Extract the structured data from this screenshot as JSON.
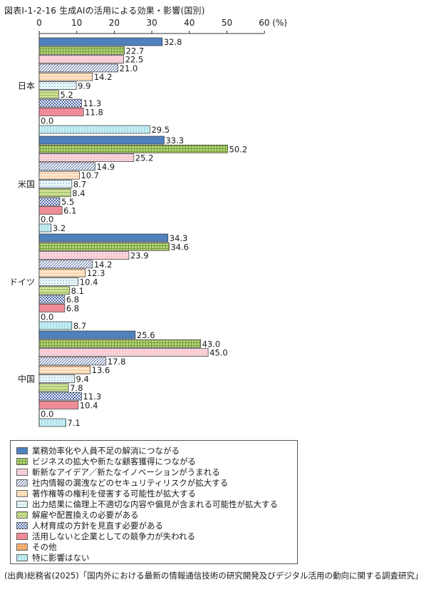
{
  "title": "図表Ⅰ-1-2-16 生成AIの活用による効果・影響(国別)",
  "source": "(出典)総務省(2025)「国内外における最新の情報通信技術の研究開発及びデジタル活用の動向に関する調査研究」",
  "chart_data": {
    "type": "bar",
    "orientation": "horizontal",
    "title": "図表Ⅰ-1-2-16 生成AIの活用による効果・影響(国別)",
    "xlim": [
      0,
      60
    ],
    "x_ticks": [
      "0",
      "10",
      "20",
      "30",
      "40",
      "50",
      "60 (%)"
    ],
    "x_tick_values": [
      0,
      10,
      20,
      30,
      40,
      50,
      60
    ],
    "categories": [
      "日本",
      "米国",
      "ドイツ",
      "中国"
    ],
    "legend_placement": "bottom-left",
    "series": [
      {
        "name": "業務効率化や人員不足の解消につながる",
        "color": "#4f81bd",
        "pattern": "solid",
        "values": [
          32.8,
          33.3,
          34.3,
          25.6
        ]
      },
      {
        "name": "ビジネスの拡大や新たな顧客獲得につながる",
        "color": "#b3d67a",
        "pattern": "grid",
        "values": [
          22.7,
          50.2,
          34.6,
          43.0
        ]
      },
      {
        "name": "斬新なアイデア／新たなイノベーションがうまれる",
        "color": "#f7c9d2",
        "pattern": "dots",
        "values": [
          22.5,
          25.2,
          23.9,
          45.0
        ]
      },
      {
        "name": "社内情報の漏洩などのセキュリティリスクが拡大する",
        "color": "#c3d0ea",
        "pattern": "diagonal",
        "values": [
          21.0,
          14.9,
          14.2,
          17.8
        ]
      },
      {
        "name": "著作権等の権利を侵害する可能性が拡大する",
        "color": "#fbd3a8",
        "pattern": "hlines",
        "values": [
          14.2,
          10.7,
          12.3,
          13.6
        ]
      },
      {
        "name": "出力結果に倫理上不適切な内容や偏見が含まれる可能性が拡大する",
        "color": "#bfe8f3",
        "pattern": "dotgrid",
        "values": [
          9.9,
          8.7,
          10.4,
          9.4
        ]
      },
      {
        "name": "解雇や配置換えの必要がある",
        "color": "#d7eaa5",
        "pattern": "zigzag",
        "values": [
          5.2,
          8.4,
          8.1,
          7.8
        ]
      },
      {
        "name": "人材育成の方針を見直す必要がある",
        "color": "#b8c8e8",
        "pattern": "checker",
        "values": [
          11.3,
          5.5,
          6.8,
          11.3
        ]
      },
      {
        "name": "活用しないと企業としての競争力が失われる",
        "color": "#ee8d98",
        "pattern": "solid",
        "values": [
          11.8,
          6.1,
          6.8,
          10.4
        ]
      },
      {
        "name": "その他",
        "color": "#f4a460",
        "pattern": "dots",
        "values": [
          0.0,
          0.0,
          0.0,
          0.0
        ]
      },
      {
        "name": "特に影響はない",
        "color": "#a6e1ea",
        "pattern": "vlines",
        "values": [
          29.5,
          3.2,
          8.7,
          7.1
        ]
      }
    ]
  }
}
